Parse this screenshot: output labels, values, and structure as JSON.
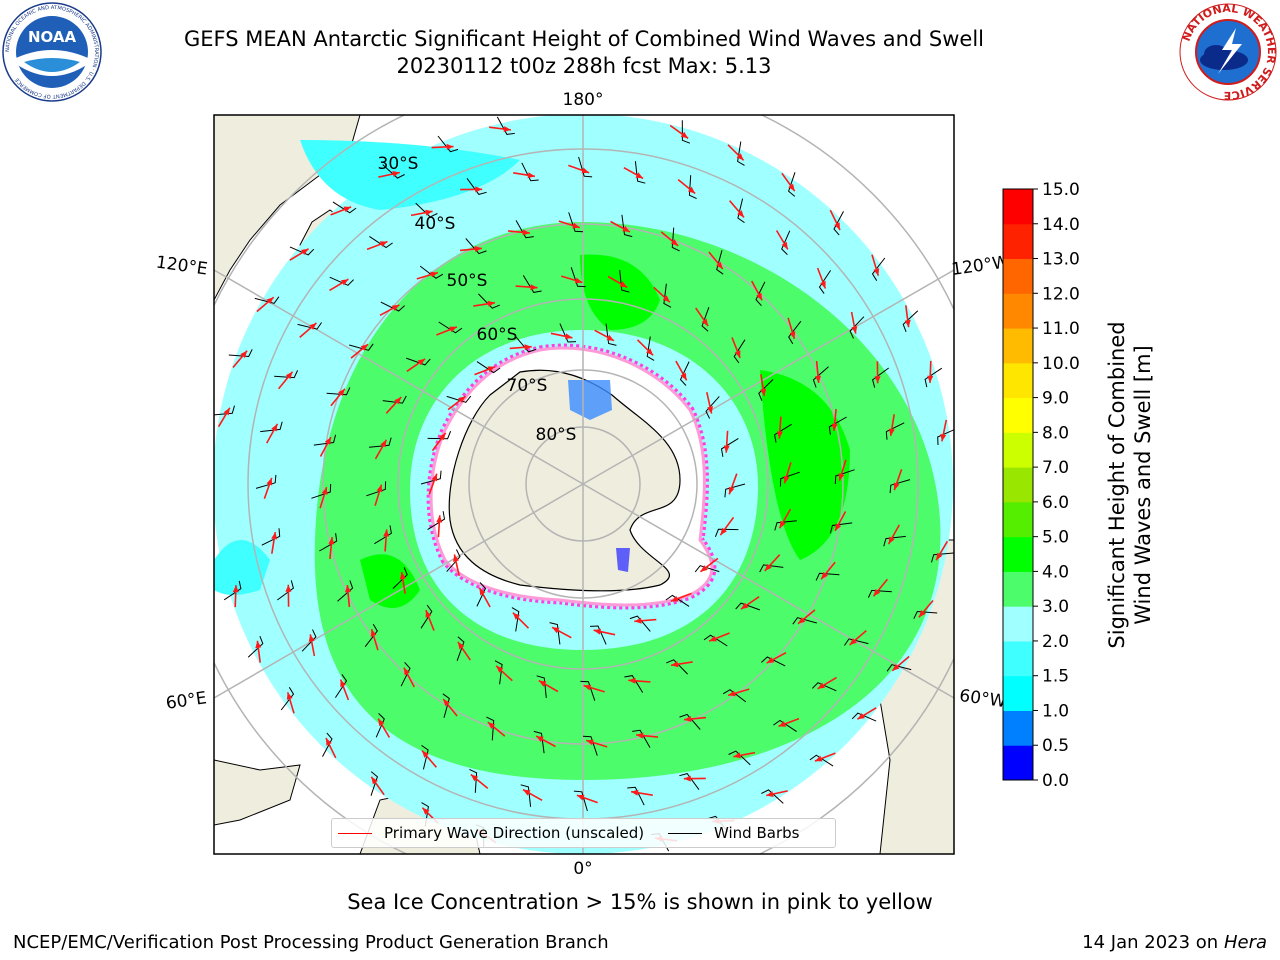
{
  "header": {
    "title_line1": "GEFS MEAN Antarctic Significant Height of Combined Wind Waves and Swell",
    "title_line2": "20230112 t00z 288h fcst   Max: 5.13"
  },
  "logos": {
    "left": {
      "text": "NOAA",
      "ring_text": "NATIONAL OCEANIC AND ATMOSPHERIC ADMINISTRATION · U.S. DEPARTMENT OF COMMERCE",
      "icon": "noaa-logo-icon"
    },
    "right": {
      "ring_text": "NATIONAL WEATHER SERVICE",
      "icon": "nws-logo-icon"
    }
  },
  "map": {
    "longitude_labels": [
      "180°",
      "120°E",
      "120°W",
      "60°E",
      "60°W",
      "0°"
    ],
    "latitude_labels": [
      "30°S",
      "40°S",
      "50°S",
      "60°S",
      "70°S",
      "80°S"
    ],
    "colors": {
      "land": "#efedde",
      "background": "#ffffff",
      "grid": "#b4b4b4",
      "arrow": "#ff1a1a",
      "barb": "#000000"
    }
  },
  "colorbar": {
    "title_line1": "Significant Height of Combined",
    "title_line2": "Wind Waves and Swell [m]",
    "ticks": [
      "0.0",
      "0.5",
      "1.0",
      "1.5",
      "2.0",
      "3.0",
      "4.0",
      "5.0",
      "6.0",
      "7.0",
      "8.0",
      "9.0",
      "10.0",
      "11.0",
      "12.0",
      "13.0",
      "14.0",
      "15.0"
    ],
    "colors": [
      "#0000ff",
      "#0080ff",
      "#00ffff",
      "#40ffff",
      "#a0ffff",
      "#4dfc6b",
      "#00ff00",
      "#55ee00",
      "#99e600",
      "#ccff00",
      "#ffff00",
      "#ffe600",
      "#ffbb00",
      "#ff8800",
      "#ff6600",
      "#ff2200",
      "#ff0000"
    ]
  },
  "legend": {
    "wave_label": "Primary Wave Direction (unscaled)",
    "barb_label": "Wind Barbs",
    "wave_color": "#ff0000",
    "barb_color": "#000000"
  },
  "notes": {
    "ice": "Sea Ice Concentration > 15% is shown in pink to yellow"
  },
  "footer": {
    "left": "NCEP/EMC/Verification Post Processing Product Generation Branch",
    "right_date": "14 Jan 2023 on",
    "right_machine": "Hera"
  }
}
